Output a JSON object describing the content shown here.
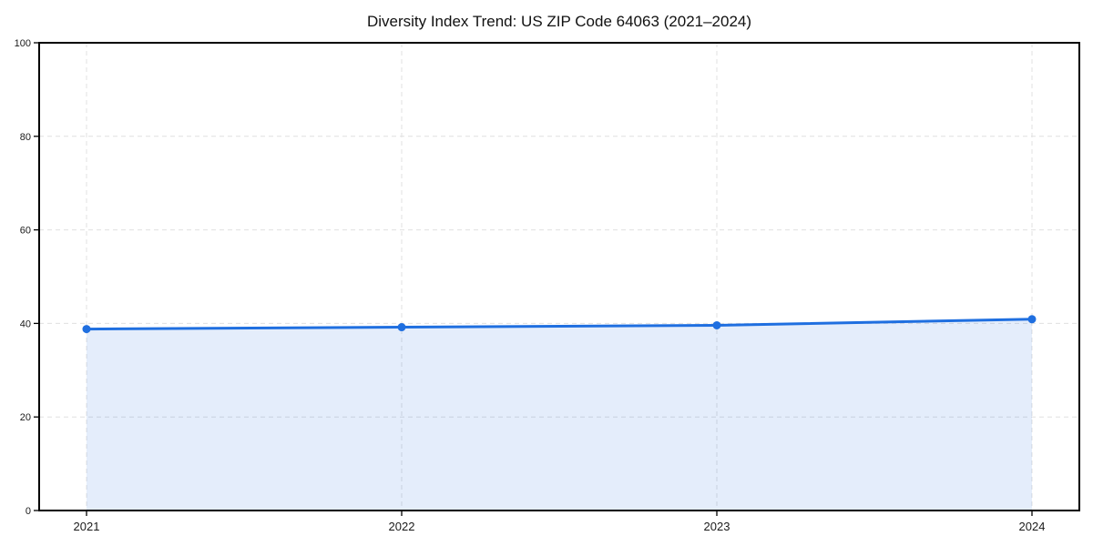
{
  "figure": {
    "background": "#ffffff"
  },
  "chart_data": {
    "type": "area",
    "title": "Diversity Index Trend: US ZIP Code 64063 (2021–2024)",
    "categories": [
      "2021",
      "2022",
      "2023",
      "2024"
    ],
    "series": [
      {
        "name": "Diversity Index",
        "values": [
          38.8,
          39.2,
          39.6,
          40.9
        ]
      }
    ],
    "xlabel": "",
    "ylabel": "",
    "ylim": [
      0,
      100
    ],
    "yticks": [
      0,
      20,
      40,
      60,
      80,
      100
    ],
    "grid": true,
    "grid_style": "dashed",
    "legend": false,
    "marker": "circle",
    "colors": {
      "line": "#1f6fe0",
      "marker": "#1f6fe0",
      "fill": "rgba(31, 111, 224, 0.12)",
      "grid": "#e0e0e0",
      "axis": "#000000",
      "tick_text": "#1a1a1a",
      "title_text": "#111111"
    }
  }
}
